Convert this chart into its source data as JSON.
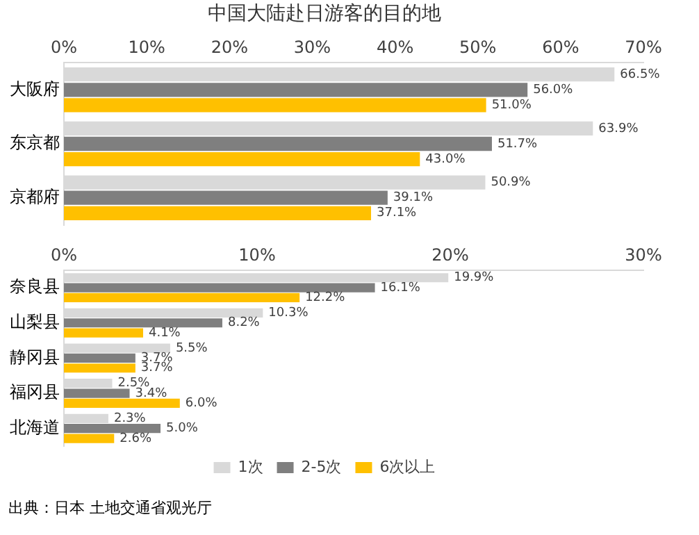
{
  "chart_data": [
    {
      "type": "bar",
      "orientation": "horizontal",
      "title": "中国大陆赴日游客的目的地",
      "categories": [
        "大阪府",
        "东京都",
        "京都府"
      ],
      "series": [
        {
          "color": "#d9d9d9",
          "values": [
            66.5,
            63.9,
            50.9
          ],
          "value_labels": [
            "66.5%",
            "63.9%",
            "50.9%"
          ]
        },
        {
          "color": "#7f7f7f",
          "values": [
            56.0,
            51.7,
            39.1
          ],
          "value_labels": [
            "56.0%",
            "51.7%",
            "39.1%"
          ]
        },
        {
          "color": "#ffc000",
          "values": [
            51.0,
            43.0,
            37.1
          ],
          "value_labels": [
            "51.0%",
            "43.0%",
            "37.1%"
          ]
        }
      ],
      "xlim": [
        0,
        70
      ],
      "xticks": [
        {
          "value": 0,
          "label": "0%"
        },
        {
          "value": 10,
          "label": "10%"
        },
        {
          "value": 20,
          "label": "20%"
        },
        {
          "value": 30,
          "label": "30%"
        },
        {
          "value": 40,
          "label": "40%"
        },
        {
          "value": 50,
          "label": "50%"
        },
        {
          "value": 60,
          "label": "60%"
        },
        {
          "value": 70,
          "label": "70%"
        }
      ],
      "grid": false
    },
    {
      "type": "bar",
      "orientation": "horizontal",
      "categories": [
        "奈良县",
        "山梨县",
        "静冈县",
        "福冈县",
        "北海道"
      ],
      "series": [
        {
          "name": "1次",
          "color": "#d9d9d9",
          "values": [
            19.9,
            10.3,
            5.5,
            2.5,
            2.3
          ],
          "value_labels": [
            "19.9%",
            "10.3%",
            "5.5%",
            "2.5%",
            "2.3%"
          ]
        },
        {
          "name": "2-5次",
          "color": "#7f7f7f",
          "values": [
            16.1,
            8.2,
            3.7,
            3.4,
            5.0
          ],
          "value_labels": [
            "16.1%",
            "8.2%",
            "3.7%",
            "3.4%",
            "5.0%"
          ]
        },
        {
          "name": "6次以上",
          "color": "#ffc000",
          "values": [
            12.2,
            4.1,
            3.7,
            6.0,
            2.6
          ],
          "value_labels": [
            "12.2%",
            "4.1%",
            "3.7%",
            "6.0%",
            "2.6%"
          ]
        }
      ],
      "xlim": [
        0,
        30
      ],
      "xticks": [
        {
          "value": 0,
          "label": "0%"
        },
        {
          "value": 10,
          "label": "10%"
        },
        {
          "value": 20,
          "label": "20%"
        },
        {
          "value": 30,
          "label": "30%"
        }
      ],
      "grid": false,
      "legend": "bottom",
      "annotations": [
        "出典：日本 土地交通省观光厅"
      ]
    }
  ]
}
